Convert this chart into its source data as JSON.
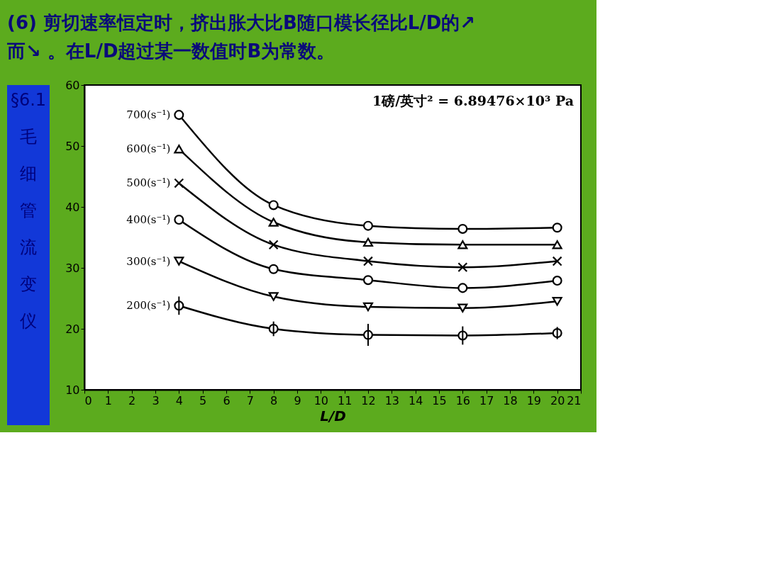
{
  "chart_data": {
    "type": "line",
    "title": "(6) 剪切速率恒定时，挤出胀大比B随口模长径比L/D的↗\n而↘ 。在L/D超过某一数值时B为常数。",
    "xlabel": "L/D",
    "x": [
      4,
      8,
      12,
      16,
      20
    ],
    "xlim": [
      0,
      21
    ],
    "xticks": [
      0,
      1,
      2,
      3,
      4,
      5,
      6,
      7,
      8,
      9,
      10,
      11,
      12,
      13,
      14,
      15,
      16,
      17,
      18,
      19,
      20,
      21
    ],
    "ylim": [
      10,
      60
    ],
    "yticks": [
      10,
      20,
      30,
      40,
      50,
      60
    ],
    "line_style": "solid",
    "series": [
      {
        "name": "700(s⁻¹)",
        "color": "#000000",
        "marker": "circle",
        "values": [
          55.1,
          40.3,
          36.9,
          36.4,
          36.6
        ]
      },
      {
        "name": "600(s⁻¹)",
        "color": "#000000",
        "marker": "triangle",
        "values": [
          49.5,
          37.5,
          34.2,
          33.8,
          33.8
        ]
      },
      {
        "name": "500(s⁻¹)",
        "color": "#000000",
        "marker": "cross",
        "values": [
          43.9,
          33.8,
          31.1,
          30.1,
          31.1
        ]
      },
      {
        "name": "400(s⁻¹)",
        "color": "#000000",
        "marker": "circle",
        "values": [
          37.9,
          29.8,
          28.0,
          26.7,
          27.9
        ]
      },
      {
        "name": "300(s⁻¹)",
        "color": "#000000",
        "marker": "triangle-down",
        "values": [
          31.1,
          25.3,
          23.6,
          23.4,
          24.5
        ]
      },
      {
        "name": "200(s⁻¹)",
        "color": "#000000",
        "marker": "circle",
        "values": [
          23.8,
          20.0,
          19.0,
          18.9,
          19.3
        ],
        "errors": [
          1.5,
          1.2,
          1.8,
          1.5,
          1.0
        ]
      }
    ],
    "annotations": [
      "1磅/英寸² = 6.89476×10³ Pa",
      "§6.1 毛细管流变仪"
    ]
  }
}
